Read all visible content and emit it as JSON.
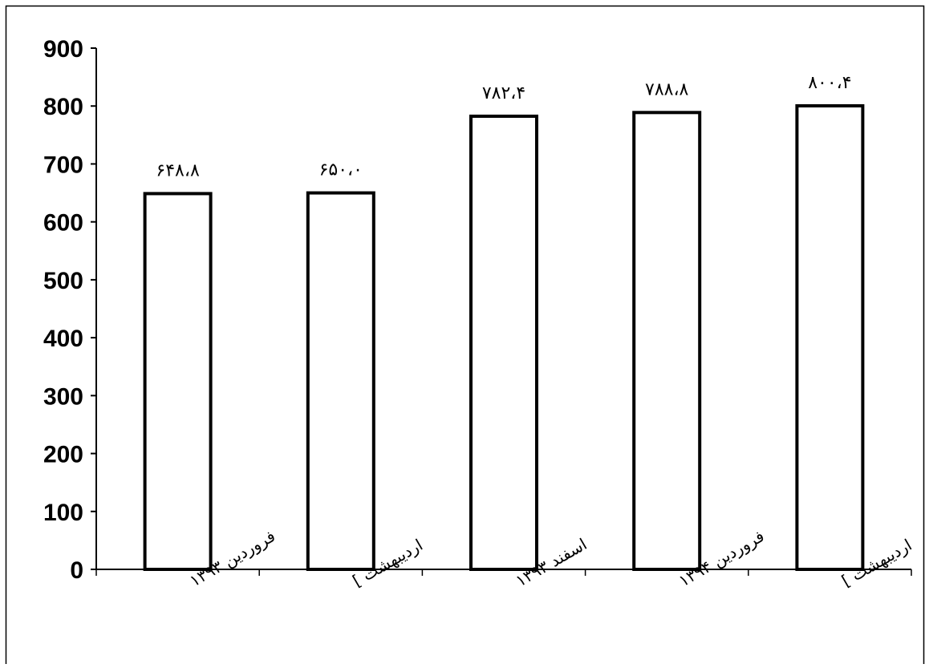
{
  "chart_data": {
    "type": "bar",
    "categories": [
      "فروردین ۱۳۹۳",
      "اردیبهشت ]",
      "اسفند ۱۳۹۳",
      "فروردین ۱۳۹۴",
      "اردیبهشت ]"
    ],
    "values": [
      648.8,
      650.0,
      782.4,
      788.8,
      800.4
    ],
    "data_labels": [
      "۶۴۸،۸",
      "۶۵۰،۰",
      "۷۸۲،۴",
      "۷۸۸،۸",
      "۸۰۰،۴"
    ],
    "ylim": [
      0,
      900
    ],
    "yticks": [
      "0",
      "100",
      "200",
      "300",
      "400",
      "500",
      "600",
      "700",
      "800",
      "900"
    ],
    "ytick_values": [
      0,
      100,
      200,
      300,
      400,
      500,
      600,
      700,
      800,
      900
    ],
    "title": "",
    "xlabel": "",
    "ylabel": "",
    "grid": false,
    "legend": "none",
    "bar_fill": "#ffffff",
    "bar_stroke": "#000000"
  }
}
